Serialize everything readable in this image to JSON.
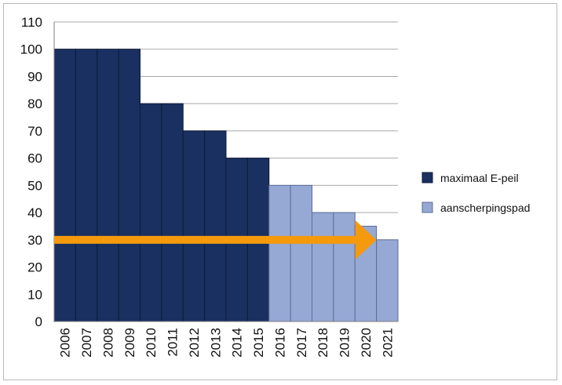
{
  "chart_data": {
    "type": "bar",
    "categories": [
      "2006",
      "2007",
      "2008",
      "2009",
      "2010",
      "2011",
      "2012",
      "2013",
      "2014",
      "2015",
      "2016",
      "2017",
      "2018",
      "2019",
      "2020",
      "2021"
    ],
    "series": [
      {
        "name": "maximaal E-peil",
        "color": "#1a3060",
        "values": [
          100,
          100,
          100,
          100,
          80,
          80,
          70,
          70,
          60,
          60,
          null,
          null,
          null,
          null,
          null,
          null
        ]
      },
      {
        "name": "aanscherpingspad",
        "color": "#96a8d4",
        "values": [
          null,
          null,
          null,
          null,
          null,
          null,
          null,
          null,
          null,
          null,
          50,
          50,
          40,
          40,
          35,
          30
        ]
      }
    ],
    "ylim": [
      0,
      110
    ],
    "yticks": [
      "0",
      "10",
      "20",
      "30",
      "40",
      "50",
      "60",
      "70",
      "80",
      "90",
      "100",
      "110"
    ],
    "grid": true,
    "legend_position": "right",
    "annotation": {
      "type": "arrow",
      "color": "#f59a0c",
      "y_value": 30,
      "x_from": "2006",
      "x_to": "2020"
    },
    "title": "",
    "xlabel": "",
    "ylabel": ""
  }
}
